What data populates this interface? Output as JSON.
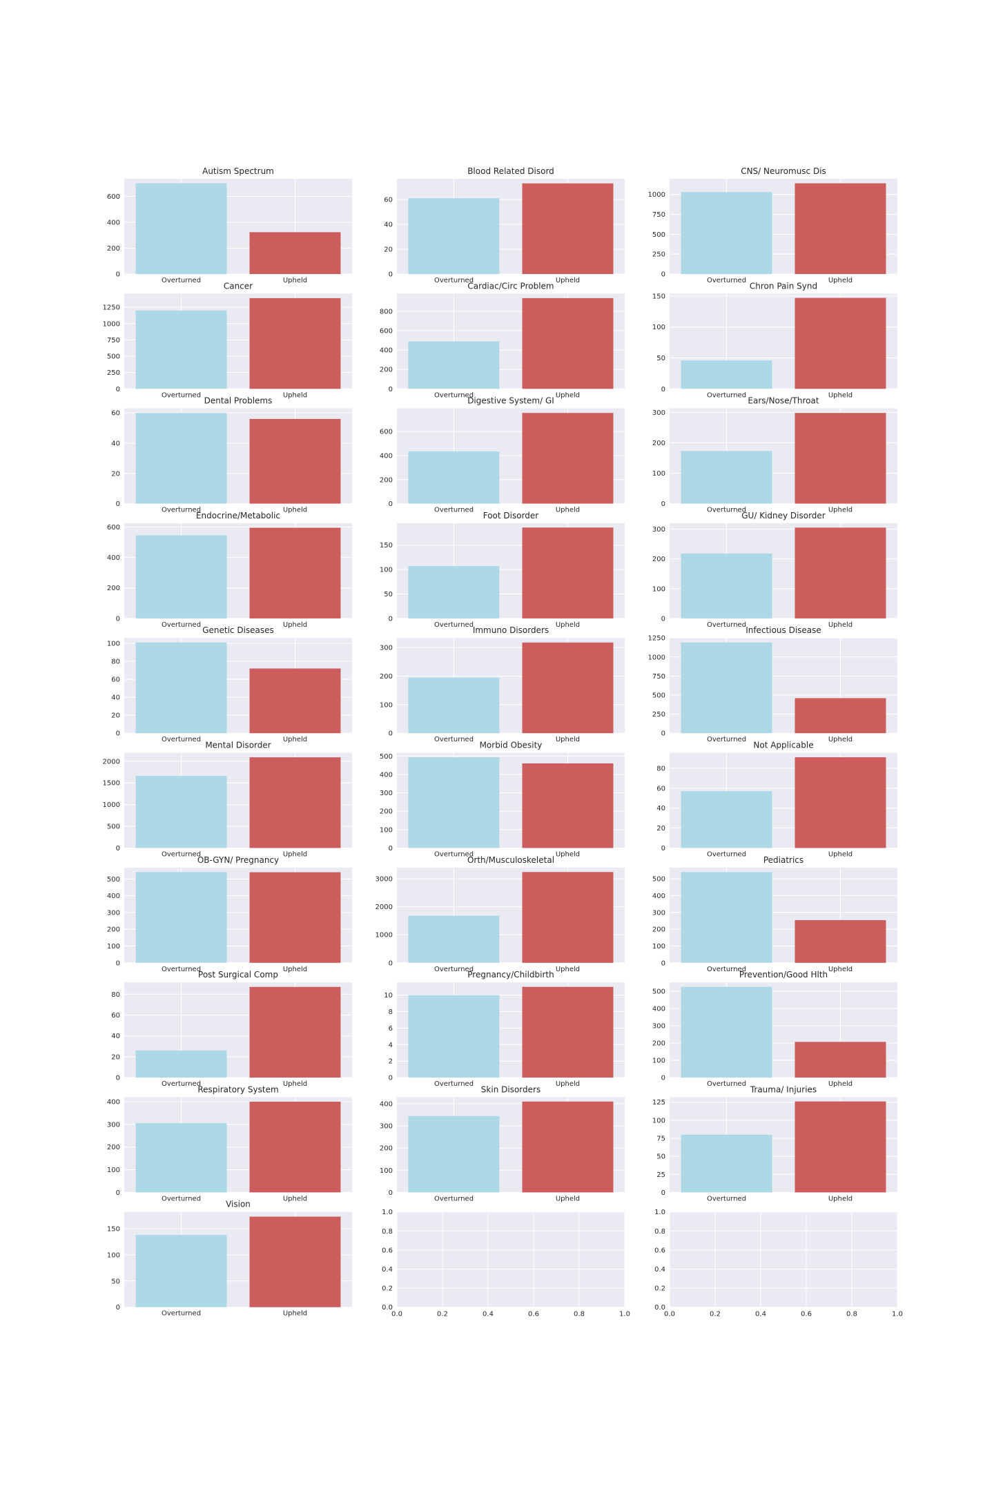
{
  "figure": {
    "colors": {
      "background": "#EAEAF2",
      "grid": "#FFFFFF",
      "overturned": "#ADD8E6",
      "upheld": "#CD5C5C"
    }
  },
  "chart_data": [
    {
      "type": "bar",
      "title": "Autism Spectrum",
      "categories": [
        "Overturned",
        "Upheld"
      ],
      "values": [
        700,
        323
      ],
      "ylim": [
        0,
        735
      ],
      "yticks": [
        0,
        200,
        400,
        600
      ]
    },
    {
      "type": "bar",
      "title": "Blood Related Disord",
      "categories": [
        "Overturned",
        "Upheld"
      ],
      "values": [
        61,
        73
      ],
      "ylim": [
        0,
        76.7
      ],
      "yticks": [
        0,
        20,
        40,
        60
      ]
    },
    {
      "type": "bar",
      "title": "CNS/ Neuromusc Dis",
      "categories": [
        "Overturned",
        "Upheld"
      ],
      "values": [
        1030,
        1140
      ],
      "ylim": [
        0,
        1197
      ],
      "yticks": [
        0,
        250,
        500,
        750,
        1000
      ]
    },
    {
      "type": "bar",
      "title": "Cancer",
      "categories": [
        "Overturned",
        "Upheld"
      ],
      "values": [
        1200,
        1390
      ],
      "ylim": [
        0,
        1460
      ],
      "yticks": [
        0,
        250,
        500,
        750,
        1000,
        1250
      ]
    },
    {
      "type": "bar",
      "title": "Cardiac/Circ Problem",
      "categories": [
        "Overturned",
        "Upheld"
      ],
      "values": [
        490,
        935
      ],
      "ylim": [
        0,
        982
      ],
      "yticks": [
        0,
        200,
        400,
        600,
        800
      ]
    },
    {
      "type": "bar",
      "title": "Chron Pain Synd",
      "categories": [
        "Overturned",
        "Upheld"
      ],
      "values": [
        46,
        147
      ],
      "ylim": [
        0,
        154
      ],
      "yticks": [
        0,
        50,
        100,
        150
      ]
    },
    {
      "type": "bar",
      "title": "Dental Problems",
      "categories": [
        "Overturned",
        "Upheld"
      ],
      "values": [
        60,
        56
      ],
      "ylim": [
        0,
        63
      ],
      "yticks": [
        0,
        20,
        40,
        60
      ]
    },
    {
      "type": "bar",
      "title": "Digestive System/ GI",
      "categories": [
        "Overturned",
        "Upheld"
      ],
      "values": [
        435,
        755
      ],
      "ylim": [
        0,
        793
      ],
      "yticks": [
        0,
        200,
        400,
        600
      ]
    },
    {
      "type": "bar",
      "title": "Ears/Nose/Throat",
      "categories": [
        "Overturned",
        "Upheld"
      ],
      "values": [
        173,
        298
      ],
      "ylim": [
        0,
        313
      ],
      "yticks": [
        0,
        100,
        200,
        300
      ]
    },
    {
      "type": "bar",
      "title": "Endocrine/Metabolic",
      "categories": [
        "Overturned",
        "Upheld"
      ],
      "values": [
        545,
        595
      ],
      "ylim": [
        0,
        625
      ],
      "yticks": [
        0,
        200,
        400,
        600
      ]
    },
    {
      "type": "bar",
      "title": "Foot Disorder",
      "categories": [
        "Overturned",
        "Upheld"
      ],
      "values": [
        107,
        186
      ],
      "ylim": [
        0,
        195
      ],
      "yticks": [
        0,
        50,
        100,
        150
      ]
    },
    {
      "type": "bar",
      "title": "GU/ Kidney Disorder",
      "categories": [
        "Overturned",
        "Upheld"
      ],
      "values": [
        218,
        305
      ],
      "ylim": [
        0,
        320
      ],
      "yticks": [
        0,
        100,
        200,
        300
      ]
    },
    {
      "type": "bar",
      "title": "Genetic Diseases",
      "categories": [
        "Overturned",
        "Upheld"
      ],
      "values": [
        101,
        72
      ],
      "ylim": [
        0,
        106
      ],
      "yticks": [
        0,
        20,
        40,
        60,
        80,
        100
      ]
    },
    {
      "type": "bar",
      "title": "Immuno Disorders",
      "categories": [
        "Overturned",
        "Upheld"
      ],
      "values": [
        195,
        318
      ],
      "ylim": [
        0,
        334
      ],
      "yticks": [
        0,
        100,
        200,
        300
      ]
    },
    {
      "type": "bar",
      "title": "Infectious Disease",
      "categories": [
        "Overturned",
        "Upheld"
      ],
      "values": [
        1190,
        460
      ],
      "ylim": [
        0,
        1250
      ],
      "yticks": [
        0,
        250,
        500,
        750,
        1000,
        1250
      ]
    },
    {
      "type": "bar",
      "title": "Mental Disorder",
      "categories": [
        "Overturned",
        "Upheld"
      ],
      "values": [
        1660,
        2090
      ],
      "ylim": [
        0,
        2195
      ],
      "yticks": [
        0,
        500,
        1000,
        1500,
        2000
      ]
    },
    {
      "type": "bar",
      "title": "Morbid Obesity",
      "categories": [
        "Overturned",
        "Upheld"
      ],
      "values": [
        493,
        460
      ],
      "ylim": [
        0,
        518
      ],
      "yticks": [
        0,
        100,
        200,
        300,
        400,
        500
      ]
    },
    {
      "type": "bar",
      "title": "Not Applicable",
      "categories": [
        "Overturned",
        "Upheld"
      ],
      "values": [
        57,
        91
      ],
      "ylim": [
        0,
        95.5
      ],
      "yticks": [
        0,
        20,
        40,
        60,
        80
      ]
    },
    {
      "type": "bar",
      "title": "OB-GYN/ Pregnancy",
      "categories": [
        "Overturned",
        "Upheld"
      ],
      "values": [
        541,
        540
      ],
      "ylim": [
        0,
        568
      ],
      "yticks": [
        0,
        100,
        200,
        300,
        400,
        500
      ]
    },
    {
      "type": "bar",
      "title": "Orth/Musculoskeletal",
      "categories": [
        "Overturned",
        "Upheld"
      ],
      "values": [
        1680,
        3240
      ],
      "ylim": [
        0,
        3400
      ],
      "yticks": [
        0,
        1000,
        2000,
        3000
      ]
    },
    {
      "type": "bar",
      "title": "Pediatrics",
      "categories": [
        "Overturned",
        "Upheld"
      ],
      "values": [
        540,
        254
      ],
      "ylim": [
        0,
        567
      ],
      "yticks": [
        0,
        100,
        200,
        300,
        400,
        500
      ]
    },
    {
      "type": "bar",
      "title": "Post Surgical Comp",
      "categories": [
        "Overturned",
        "Upheld"
      ],
      "values": [
        26,
        87
      ],
      "ylim": [
        0,
        91.4
      ],
      "yticks": [
        0,
        20,
        40,
        60,
        80
      ]
    },
    {
      "type": "bar",
      "title": "Pregnancy/Childbirth",
      "categories": [
        "Overturned",
        "Upheld"
      ],
      "values": [
        10,
        11
      ],
      "ylim": [
        0,
        11.55
      ],
      "yticks": [
        0,
        2,
        4,
        6,
        8,
        10
      ]
    },
    {
      "type": "bar",
      "title": "Prevention/Good Hlth",
      "categories": [
        "Overturned",
        "Upheld"
      ],
      "values": [
        526,
        207
      ],
      "ylim": [
        0,
        552
      ],
      "yticks": [
        0,
        100,
        200,
        300,
        400,
        500
      ]
    },
    {
      "type": "bar",
      "title": "Respiratory System",
      "categories": [
        "Overturned",
        "Upheld"
      ],
      "values": [
        305,
        400
      ],
      "ylim": [
        0,
        420
      ],
      "yticks": [
        0,
        100,
        200,
        300,
        400
      ]
    },
    {
      "type": "bar",
      "title": "Skin Disorders",
      "categories": [
        "Overturned",
        "Upheld"
      ],
      "values": [
        345,
        410
      ],
      "ylim": [
        0,
        430
      ],
      "yticks": [
        0,
        100,
        200,
        300,
        400
      ]
    },
    {
      "type": "bar",
      "title": "Trauma/ Injuries",
      "categories": [
        "Overturned",
        "Upheld"
      ],
      "values": [
        80,
        126
      ],
      "ylim": [
        0,
        132
      ],
      "yticks": [
        0,
        25,
        50,
        75,
        100,
        125
      ]
    },
    {
      "type": "bar",
      "title": "Vision",
      "categories": [
        "Overturned",
        "Upheld"
      ],
      "values": [
        138,
        173
      ],
      "ylim": [
        0,
        182
      ],
      "yticks": [
        0,
        50,
        100,
        150
      ]
    },
    {
      "type": "empty",
      "title": "",
      "xlim": [
        0,
        1
      ],
      "ylim": [
        0,
        1
      ],
      "xticks": [
        "0.0",
        "0.2",
        "0.4",
        "0.6",
        "0.8",
        "1.0"
      ],
      "yticks": [
        "0.0",
        "0.2",
        "0.4",
        "0.6",
        "0.8",
        "1.0"
      ]
    },
    {
      "type": "empty",
      "title": "",
      "xlim": [
        0,
        1
      ],
      "ylim": [
        0,
        1
      ],
      "xticks": [
        "0.0",
        "0.2",
        "0.4",
        "0.6",
        "0.8",
        "1.0"
      ],
      "yticks": [
        "0.0",
        "0.2",
        "0.4",
        "0.6",
        "0.8",
        "1.0"
      ]
    }
  ]
}
